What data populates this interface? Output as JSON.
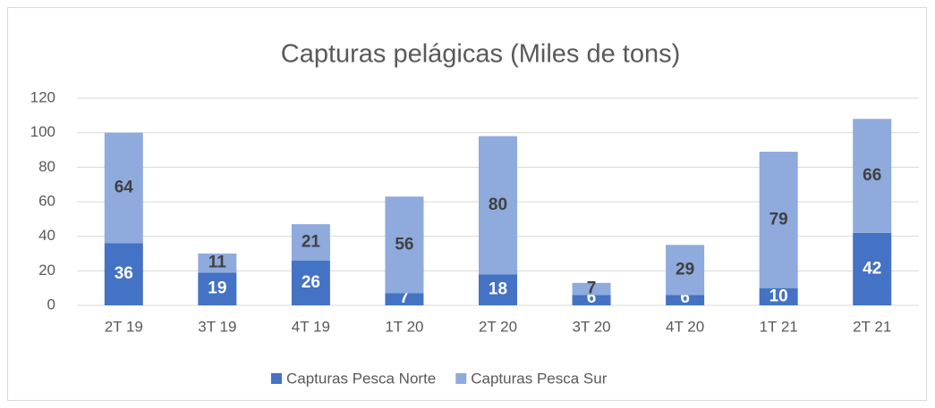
{
  "chart_data": {
    "type": "stacked-bar",
    "title": "Capturas pelágicas (Miles de tons)",
    "categories": [
      "2T 19",
      "3T 19",
      "4T 19",
      "1T 20",
      "2T 20",
      "3T 20",
      "4T 20",
      "1T 21",
      "2T 21"
    ],
    "series": [
      {
        "name": "Capturas Pesca Norte",
        "color": "#4472c4",
        "label_color": "#ffffff",
        "values": [
          36,
          19,
          26,
          7,
          18,
          6,
          6,
          10,
          42
        ]
      },
      {
        "name": "Capturas Pesca Sur",
        "color": "#8faadc",
        "label_color": "#404040",
        "values": [
          64,
          11,
          21,
          56,
          80,
          7,
          29,
          79,
          66
        ]
      }
    ],
    "ylim": [
      0,
      120
    ],
    "yticks": [
      0,
      20,
      40,
      60,
      80,
      100,
      120
    ],
    "grid": true,
    "legend": "bottom"
  }
}
